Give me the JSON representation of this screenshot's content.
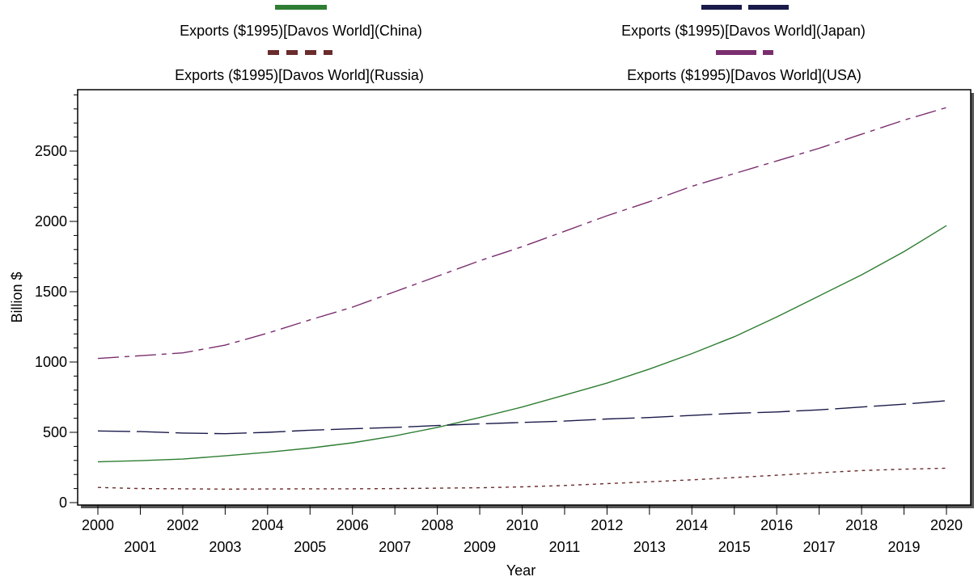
{
  "chart_data": {
    "type": "line",
    "title": "",
    "xlabel": "Year",
    "ylabel": "Billion $",
    "xlim": [
      2000,
      2020
    ],
    "ylim": [
      0,
      2900
    ],
    "grid": false,
    "legend_placement": "top",
    "x": [
      2000,
      2001,
      2002,
      2003,
      2004,
      2005,
      2006,
      2007,
      2008,
      2009,
      2010,
      2011,
      2012,
      2013,
      2014,
      2015,
      2016,
      2017,
      2018,
      2019,
      2020
    ],
    "x_tick_labels": [
      "2000",
      "2001",
      "2002",
      "2003",
      "2004",
      "2005",
      "2006",
      "2007",
      "2008",
      "2009",
      "2010",
      "2011",
      "2012",
      "2013",
      "2014",
      "2015",
      "2016",
      "2017",
      "2018",
      "2019",
      "2020"
    ],
    "y_tick_labels": [
      "0",
      "500",
      "1000",
      "1500",
      "2000",
      "2500"
    ],
    "y_ticks": [
      0,
      500,
      1000,
      1500,
      2000,
      2500
    ],
    "series": [
      {
        "name": "Exports ($1995)[Davos World](China)",
        "color": "#2e7d32",
        "values": [
          290,
          298,
          310,
          333,
          358,
          388,
          425,
          475,
          535,
          605,
          680,
          765,
          850,
          950,
          1060,
          1180,
          1320,
          1470,
          1620,
          1785,
          1970
        ]
      },
      {
        "name": "Exports ($1995)[Davos World](Japan)",
        "color": "#1a1a4a",
        "values": [
          510,
          505,
          495,
          490,
          500,
          515,
          525,
          535,
          548,
          560,
          570,
          580,
          595,
          605,
          620,
          635,
          645,
          660,
          680,
          700,
          725
        ]
      },
      {
        "name": "Exports ($1995)[Davos World](Russia)",
        "color": "#6a2c2c",
        "values": [
          108,
          100,
          98,
          96,
          97,
          98,
          98,
          100,
          103,
          106,
          112,
          122,
          135,
          148,
          162,
          178,
          195,
          212,
          228,
          238,
          245
        ]
      },
      {
        "name": "Exports ($1995)[Davos World](USA)",
        "color": "#7a2e6e",
        "values": [
          1025,
          1045,
          1065,
          1120,
          1205,
          1300,
          1390,
          1500,
          1610,
          1720,
          1820,
          1930,
          2040,
          2140,
          2250,
          2340,
          2430,
          2520,
          2620,
          2720,
          2810
        ]
      }
    ]
  }
}
